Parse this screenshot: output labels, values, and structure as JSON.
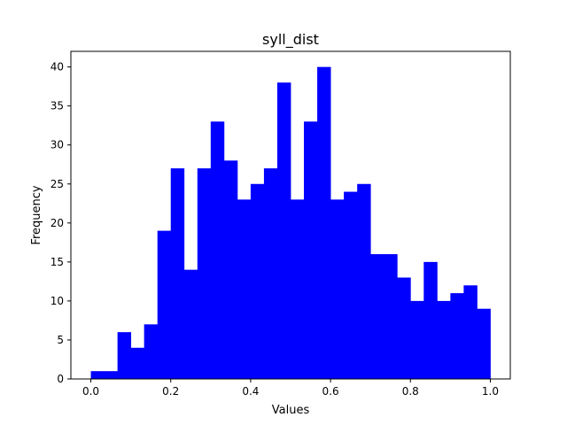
{
  "chart_data": {
    "type": "bar",
    "title": "syll_dist",
    "xlabel": "Values",
    "ylabel": "Frequency",
    "xlim": [
      -0.05,
      1.05
    ],
    "ylim": [
      0,
      42
    ],
    "x_ticks": [
      0.0,
      0.2,
      0.4,
      0.6,
      0.8,
      1.0
    ],
    "x_tick_labels": [
      "0.0",
      "0.2",
      "0.4",
      "0.6",
      "0.8",
      "1.0"
    ],
    "y_ticks": [
      0,
      5,
      10,
      15,
      20,
      25,
      30,
      35,
      40
    ],
    "y_tick_labels": [
      "0",
      "5",
      "10",
      "15",
      "20",
      "25",
      "30",
      "35",
      "40"
    ],
    "bin_edges": [
      0.0,
      0.0333,
      0.0667,
      0.1,
      0.1333,
      0.1667,
      0.2,
      0.2333,
      0.2667,
      0.3,
      0.3333,
      0.3667,
      0.4,
      0.4333,
      0.4667,
      0.5,
      0.5333,
      0.5667,
      0.6,
      0.6333,
      0.6667,
      0.7,
      0.7333,
      0.7667,
      0.8,
      0.8333,
      0.8667,
      0.9,
      0.9333,
      0.9667,
      1.0
    ],
    "values": [
      1,
      1,
      6,
      4,
      7,
      19,
      27,
      14,
      27,
      33,
      28,
      23,
      25,
      27,
      38,
      23,
      33,
      40,
      23,
      24,
      25,
      16,
      16,
      13,
      10,
      15,
      10,
      11,
      12,
      9
    ],
    "bar_color": "#0000ff",
    "grid": false
  }
}
